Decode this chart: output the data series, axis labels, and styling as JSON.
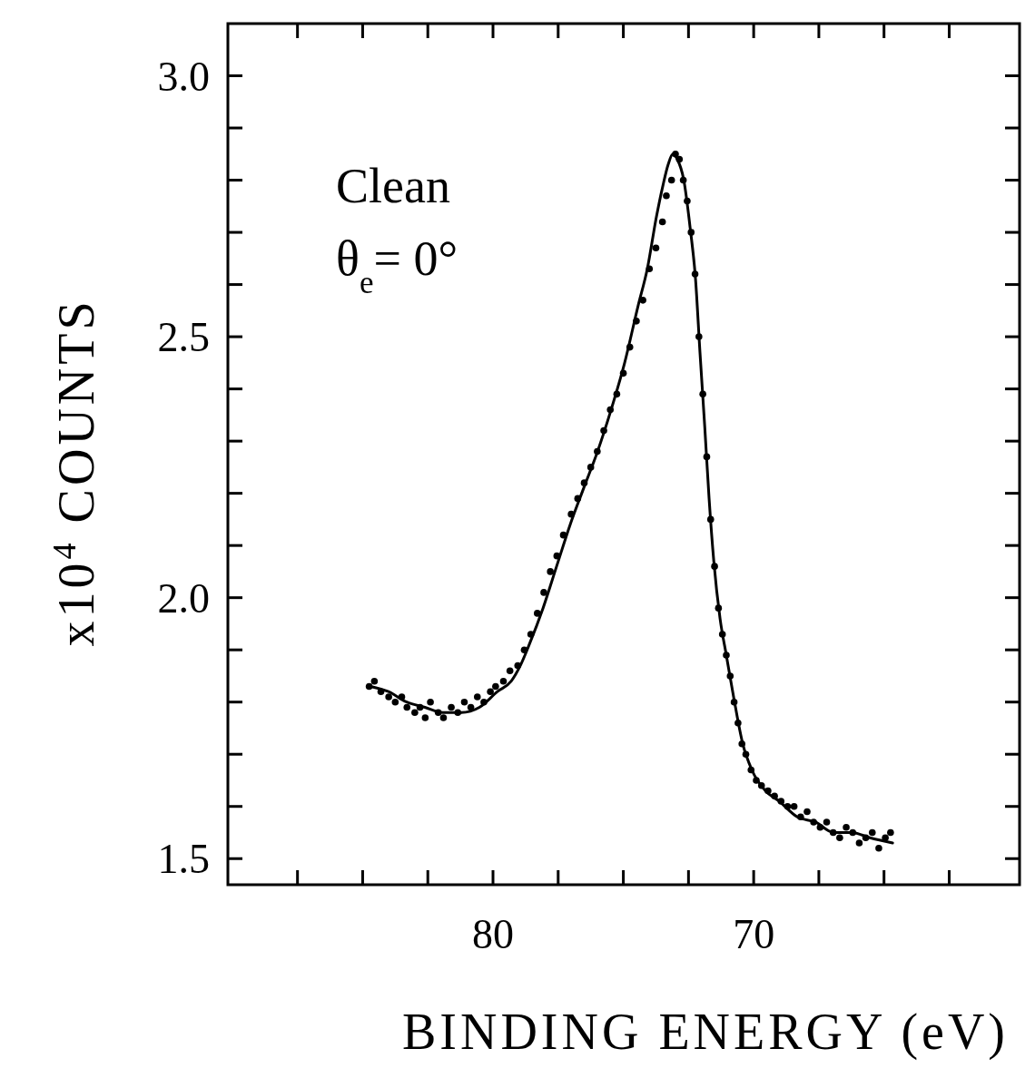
{
  "chart_data": {
    "type": "scatter",
    "xlabel": "BINDING ENERGY (eV)",
    "ylabel": "x10$^{4}$ COUNTS",
    "annotations": [
      "Clean",
      "θ$_{e}$= 0°"
    ],
    "xlim": [
      90.17,
      59.8
    ],
    "ylim": [
      1.45,
      3.1
    ],
    "xticks": [
      {
        "value": 87.5,
        "label": null
      },
      {
        "value": 85,
        "label": null
      },
      {
        "value": 82.5,
        "label": null
      },
      {
        "value": 80,
        "label": "80"
      },
      {
        "value": 77.5,
        "label": null
      },
      {
        "value": 75,
        "label": null
      },
      {
        "value": 72.5,
        "label": null
      },
      {
        "value": 70,
        "label": "70"
      },
      {
        "value": 67.5,
        "label": null
      },
      {
        "value": 65,
        "label": null
      },
      {
        "value": 62.5,
        "label": null
      }
    ],
    "yticks": [
      {
        "value": 1.5,
        "label": "1.5"
      },
      {
        "value": 1.6,
        "label": null
      },
      {
        "value": 1.7,
        "label": null
      },
      {
        "value": 1.8,
        "label": null
      },
      {
        "value": 1.9,
        "label": null
      },
      {
        "value": 2.0,
        "label": "2.0"
      },
      {
        "value": 2.1,
        "label": null
      },
      {
        "value": 2.2,
        "label": null
      },
      {
        "value": 2.3,
        "label": null
      },
      {
        "value": 2.4,
        "label": null
      },
      {
        "value": 2.5,
        "label": "2.5"
      },
      {
        "value": 2.6,
        "label": null
      },
      {
        "value": 2.7,
        "label": null
      },
      {
        "value": 2.8,
        "label": null
      },
      {
        "value": 2.9,
        "label": null
      },
      {
        "value": 3.0,
        "label": "3.0"
      }
    ],
    "series": [
      {
        "marker": "circle",
        "color": "#000000",
        "x": [
          84.75,
          84.55,
          84.3,
          84.0,
          83.75,
          83.5,
          83.3,
          83.0,
          82.8,
          82.6,
          82.4,
          82.1,
          81.9,
          81.6,
          81.35,
          81.1,
          80.85,
          80.6,
          80.35,
          80.1,
          79.9,
          79.6,
          79.35,
          79.05,
          78.8,
          78.55,
          78.3,
          78.05,
          77.8,
          77.55,
          77.3,
          77.0,
          76.75,
          76.5,
          76.25,
          76.0,
          75.75,
          75.5,
          75.25,
          75.0,
          74.75,
          74.5,
          74.25,
          74.0,
          73.75,
          73.5,
          73.35,
          73.15,
          73.0,
          72.85,
          72.7,
          72.55,
          72.4,
          72.25,
          72.1,
          71.95,
          71.8,
          71.65,
          71.5,
          71.35,
          71.2,
          71.05,
          70.9,
          70.75,
          70.6,
          70.45,
          70.3,
          70.1,
          69.9,
          69.7,
          69.45,
          69.2,
          68.95,
          68.7,
          68.45,
          68.2,
          67.95,
          67.7,
          67.45,
          67.2,
          66.95,
          66.7,
          66.45,
          66.2,
          65.95,
          65.7,
          65.45,
          65.2,
          64.95,
          64.75
        ],
        "values": [
          1.83,
          1.84,
          1.82,
          1.81,
          1.8,
          1.81,
          1.79,
          1.78,
          1.79,
          1.77,
          1.8,
          1.78,
          1.77,
          1.79,
          1.78,
          1.8,
          1.79,
          1.81,
          1.8,
          1.82,
          1.83,
          1.84,
          1.86,
          1.87,
          1.9,
          1.93,
          1.97,
          2.01,
          2.05,
          2.08,
          2.12,
          2.16,
          2.19,
          2.22,
          2.25,
          2.28,
          2.32,
          2.36,
          2.39,
          2.43,
          2.48,
          2.53,
          2.57,
          2.63,
          2.67,
          2.72,
          2.77,
          2.8,
          2.85,
          2.84,
          2.8,
          2.76,
          2.7,
          2.62,
          2.5,
          2.39,
          2.27,
          2.15,
          2.06,
          1.98,
          1.93,
          1.89,
          1.85,
          1.8,
          1.76,
          1.72,
          1.7,
          1.67,
          1.65,
          1.64,
          1.63,
          1.62,
          1.61,
          1.6,
          1.6,
          1.58,
          1.59,
          1.57,
          1.56,
          1.57,
          1.55,
          1.54,
          1.56,
          1.55,
          1.53,
          1.54,
          1.55,
          1.52,
          1.54,
          1.55
        ]
      },
      {
        "type": "line",
        "marker": "none",
        "line_style": "solid",
        "color": "#000000",
        "x": [
          84.7,
          84.01,
          83.31,
          82.61,
          81.92,
          81.22,
          80.52,
          79.83,
          79.3,
          78.95,
          78.61,
          78.08,
          77.56,
          77.04,
          76.52,
          75.99,
          75.47,
          74.95,
          74.43,
          74.08,
          73.73,
          73.48,
          73.28,
          73.1,
          72.93,
          72.68,
          72.44,
          72.23,
          72.06,
          71.88,
          71.71,
          71.53,
          71.29,
          71.05,
          70.77,
          70.42,
          70.07,
          69.55,
          69.02,
          68.33,
          67.63,
          66.93,
          66.24,
          65.54,
          64.67
        ],
        "values": [
          1.83,
          1.82,
          1.8,
          1.79,
          1.78,
          1.78,
          1.79,
          1.82,
          1.84,
          1.87,
          1.91,
          1.98,
          2.06,
          2.14,
          2.21,
          2.28,
          2.36,
          2.45,
          2.56,
          2.63,
          2.73,
          2.79,
          2.83,
          2.85,
          2.84,
          2.8,
          2.71,
          2.61,
          2.47,
          2.33,
          2.19,
          2.07,
          1.96,
          1.89,
          1.81,
          1.72,
          1.67,
          1.63,
          1.61,
          1.58,
          1.57,
          1.55,
          1.55,
          1.54,
          1.53
        ]
      }
    ]
  }
}
